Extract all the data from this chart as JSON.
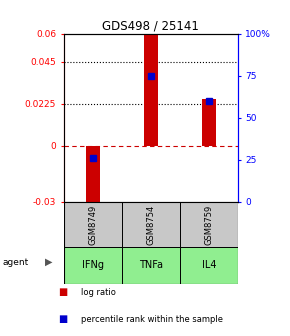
{
  "title": "GDS498 / 25141",
  "samples": [
    "GSM8749",
    "GSM8754",
    "GSM8759"
  ],
  "agents": [
    "IFNg",
    "TNFa",
    "IL4"
  ],
  "log_ratios": [
    -0.034,
    0.06,
    0.025
  ],
  "percentile_ranks": [
    26,
    75,
    60
  ],
  "ylim_left": [
    -0.03,
    0.06
  ],
  "ylim_right": [
    0,
    100
  ],
  "yticks_left": [
    -0.03,
    0,
    0.0225,
    0.045,
    0.06
  ],
  "yticks_right": [
    0,
    25,
    50,
    75,
    100
  ],
  "ytick_labels_left": [
    "-0.03",
    "0",
    "0.0225",
    "0.045",
    "0.06"
  ],
  "ytick_labels_right": [
    "0",
    "25",
    "50",
    "75",
    "100%"
  ],
  "hlines_dotted": [
    0.045,
    0.0225
  ],
  "bar_color": "#cc0000",
  "square_color": "#0000cc",
  "agent_green": "#90ee90",
  "sample_box_color": "#c8c8c8",
  "legend_bar_label": "log ratio",
  "legend_sq_label": "percentile rank within the sample"
}
